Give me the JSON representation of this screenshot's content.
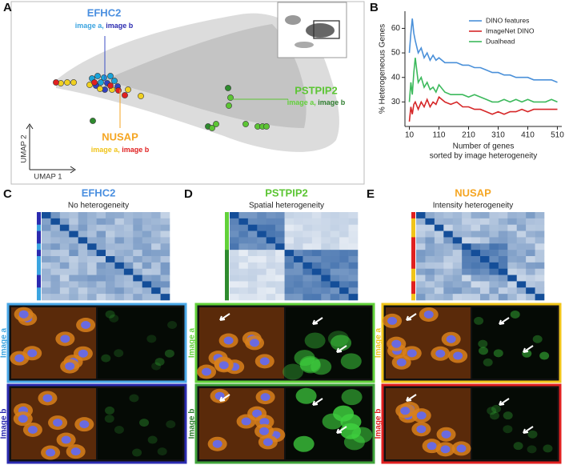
{
  "panel_labels": [
    "A",
    "B",
    "C",
    "D",
    "E"
  ],
  "umap": {
    "y_axis": "UMAP 2",
    "x_axis": "UMAP 1",
    "genes": [
      {
        "name": "EFHC2",
        "image_a": "image a,",
        "image_b": "image b"
      },
      {
        "name": "PSTPIP2",
        "image_a": "image a,",
        "image_b": "image b"
      },
      {
        "name": "NUSAP",
        "image_a": "image a,",
        "image_b": "image b"
      }
    ]
  },
  "heatmaps": [
    {
      "gene": "EFHC2",
      "subtitle": "No heterogeneity",
      "rows": [
        "Image a",
        "Image b"
      ]
    },
    {
      "gene": "PSTPIP2",
      "subtitle": "Spatial heterogeneity",
      "rows": [
        "Image a",
        "Image b"
      ]
    },
    {
      "gene": "NUSAP",
      "subtitle": "Intensity heterogeneity",
      "rows": [
        "Image a",
        "Image b"
      ]
    }
  ],
  "chart_data": {
    "type": "line",
    "y_label": "% Heterogeneous Genes",
    "x_label": [
      "Number of genes",
      "sorted by image heterogeneity"
    ],
    "x": [
      10,
      15,
      20,
      25,
      30,
      40,
      50,
      60,
      70,
      80,
      90,
      100,
      110,
      130,
      150,
      170,
      190,
      210,
      230,
      250,
      270,
      290,
      310,
      330,
      350,
      370,
      390,
      410,
      430,
      450,
      470,
      490,
      510
    ],
    "series": [
      {
        "name": "DINO features",
        "color": "#4a90d9",
        "values": [
          50,
          58,
          64,
          58,
          55,
          50,
          52,
          48,
          50,
          47,
          49,
          47,
          48,
          46,
          46,
          46,
          45,
          45,
          44,
          44,
          43,
          42,
          42,
          41,
          41,
          40,
          40,
          40,
          39,
          39,
          39,
          39,
          38
        ]
      },
      {
        "name": "ImageNet DINO",
        "color": "#d62728",
        "values": [
          22,
          28,
          25,
          29,
          30,
          27,
          30,
          28,
          31,
          28,
          30,
          29,
          32,
          30,
          29,
          30,
          28,
          28,
          27,
          27,
          26,
          25,
          26,
          25,
          26,
          26,
          27,
          26,
          27,
          27,
          27,
          27,
          27
        ]
      },
      {
        "name": "Dualhead",
        "color": "#3cb95c",
        "values": [
          30,
          38,
          33,
          42,
          48,
          38,
          40,
          36,
          38,
          35,
          36,
          34,
          37,
          34,
          33,
          33,
          33,
          32,
          33,
          32,
          31,
          30,
          30,
          31,
          30,
          31,
          30,
          31,
          30,
          30,
          30,
          31,
          30
        ]
      }
    ],
    "xlim": [
      -5,
      525
    ],
    "ylim": [
      20,
      67
    ],
    "xticks": [
      10,
      110,
      210,
      310,
      410,
      510
    ],
    "yticks": [
      30,
      40,
      50,
      60
    ],
    "grid": false,
    "legend": "upper right"
  }
}
